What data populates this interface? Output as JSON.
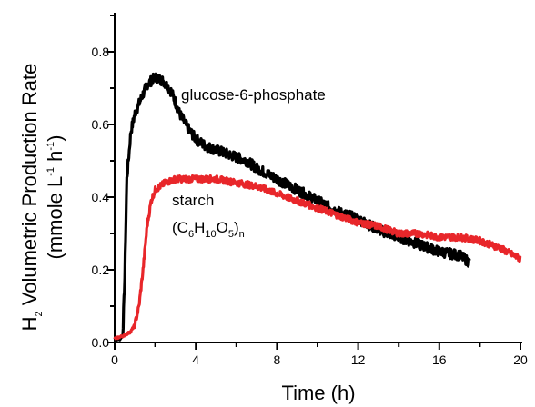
{
  "chart_data": {
    "type": "line",
    "xlabel": "Time (h)",
    "ylabel": {
      "line1_prefix": "H",
      "line1_sub": "2",
      "line1_rest": " Volumetric Production Rate",
      "line2_a": "(mmole L",
      "line2_sup1": "-1",
      "line2_b": " h",
      "line2_sup2": "-1",
      "line2_c": ")"
    },
    "xlim": [
      0,
      20
    ],
    "ylim": [
      0,
      0.85
    ],
    "x_ticks": [
      0,
      4,
      8,
      12,
      16,
      20
    ],
    "x_tick_labels": [
      "0",
      "4",
      "8",
      "12",
      "16",
      "20"
    ],
    "y_ticks": [
      0.0,
      0.2,
      0.4,
      0.6,
      0.8
    ],
    "y_tick_labels": [
      "0.0",
      "0.2",
      "0.4",
      "0.6",
      "0.8"
    ],
    "grid": false,
    "annotations": {
      "glucose": "glucose-6-phosphate",
      "starch_line1": "starch",
      "starch_formula": {
        "p1": "(C",
        "s1": "6",
        "p2": "H",
        "s2": "10",
        "p3": "O",
        "s3": "5",
        "p4": ")",
        "s4": "n"
      }
    },
    "series": [
      {
        "key": "glucose-6-phosphate",
        "color": "#000000",
        "noise": 0.014,
        "x": [
          0.0,
          0.25,
          0.4,
          0.5,
          0.6,
          0.8,
          1.0,
          1.3,
          1.6,
          2.0,
          2.4,
          2.8,
          3.2,
          3.6,
          4.0,
          4.5,
          5.0,
          5.5,
          6.0,
          6.5,
          7.0,
          8.0,
          9.0,
          10.0,
          11.0,
          12.0,
          13.0,
          14.0,
          15.0,
          16.0,
          17.0,
          17.5
        ],
        "y": [
          0.01,
          0.01,
          0.02,
          0.18,
          0.45,
          0.58,
          0.63,
          0.67,
          0.71,
          0.73,
          0.72,
          0.69,
          0.63,
          0.59,
          0.56,
          0.54,
          0.53,
          0.52,
          0.51,
          0.5,
          0.48,
          0.45,
          0.42,
          0.39,
          0.36,
          0.34,
          0.31,
          0.29,
          0.27,
          0.25,
          0.24,
          0.22
        ]
      },
      {
        "key": "starch",
        "color": "#e8262a",
        "noise": 0.009,
        "x": [
          0.0,
          0.5,
          0.8,
          1.0,
          1.2,
          1.4,
          1.6,
          1.8,
          2.0,
          2.5,
          3.0,
          3.5,
          4.0,
          5.0,
          6.0,
          7.0,
          8.0,
          9.0,
          10.0,
          11.0,
          12.0,
          13.0,
          14.0,
          15.0,
          16.0,
          17.0,
          18.0,
          19.0,
          20.0
        ],
        "y": [
          0.01,
          0.02,
          0.03,
          0.05,
          0.1,
          0.2,
          0.32,
          0.39,
          0.42,
          0.44,
          0.45,
          0.45,
          0.45,
          0.45,
          0.44,
          0.43,
          0.41,
          0.39,
          0.37,
          0.35,
          0.33,
          0.32,
          0.3,
          0.3,
          0.29,
          0.29,
          0.28,
          0.26,
          0.23
        ]
      }
    ]
  }
}
